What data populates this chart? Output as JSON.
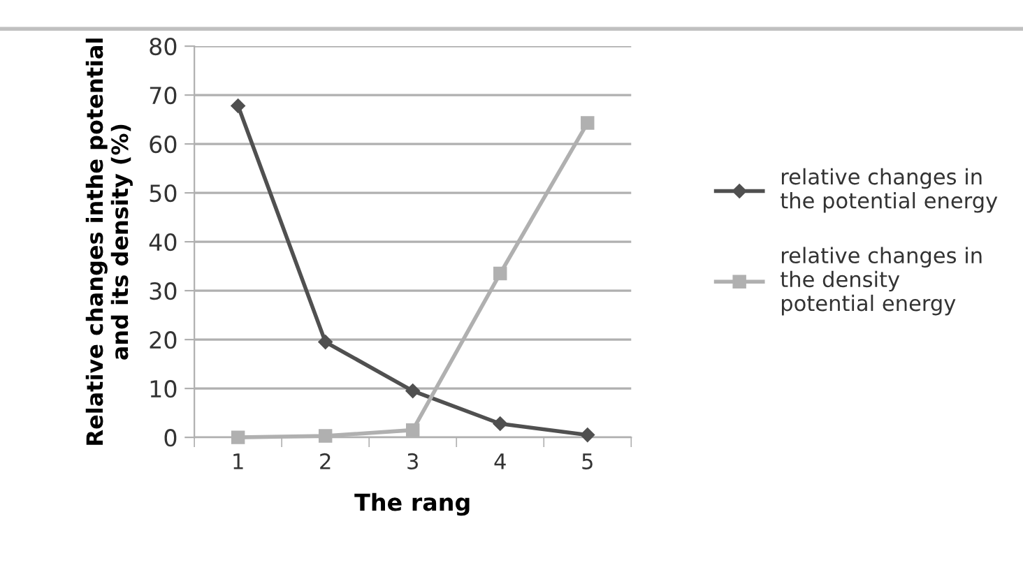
{
  "chart_data": {
    "type": "line",
    "xlabel": "The rang",
    "ylabel": "Relative changes inthe potential\nand its density (%)",
    "categories": [
      "1",
      "2",
      "3",
      "4",
      "5"
    ],
    "series": [
      {
        "name": "relative changes in\nthe potential energy",
        "color": "#505050",
        "marker": "diamond",
        "values": [
          67.8,
          19.5,
          9.5,
          2.8,
          0.5
        ]
      },
      {
        "name": "relative changes in\nthe density\npotential energy",
        "color": "#b0b0b0",
        "marker": "square",
        "values": [
          0,
          0.3,
          1.5,
          33.5,
          64.3
        ]
      }
    ],
    "ylim": [
      0,
      80
    ],
    "yticks": [
      0,
      10,
      20,
      30,
      40,
      50,
      60,
      70,
      80
    ],
    "grid": "y",
    "legend": "right"
  }
}
